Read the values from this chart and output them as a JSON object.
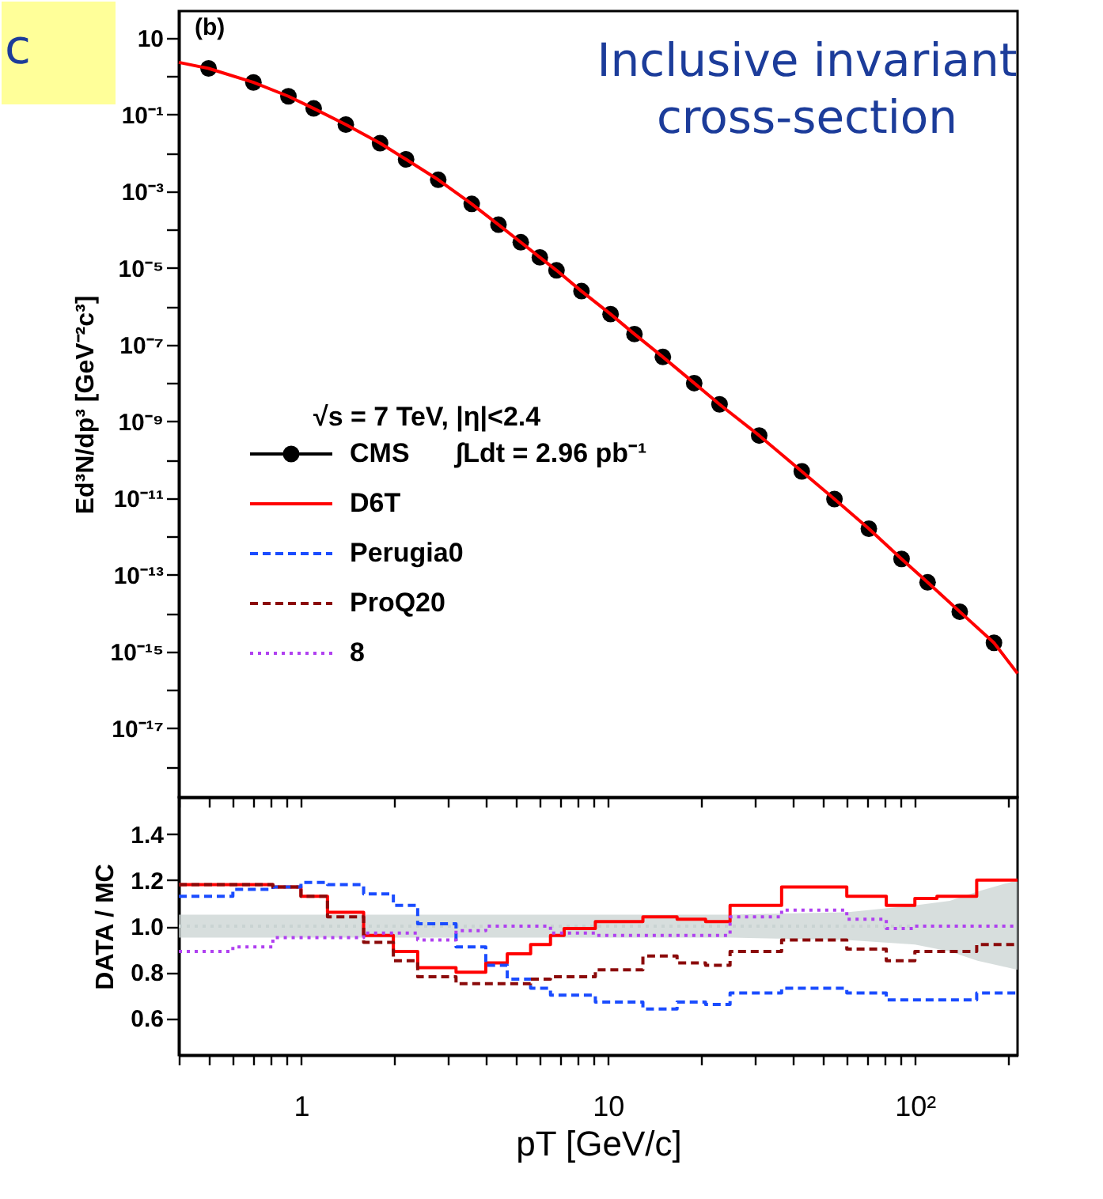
{
  "chart_data": [
    {
      "type": "scatter",
      "ylabel": "Ed³N/dp³ [GeV⁻²c³]",
      "log": "xy",
      "tick_labels": "y",
      "legend": "left",
      "legend_title": "√s = 7 TeV,   |η|<2.4",
      "annotations": [
        "(b)",
        "∫Ldt = 2.96 pb⁻¹",
        "Inclusive invariant cross-section",
        "c"
      ],
      "xlim": [
        0.4,
        216
      ],
      "ylim": [
        1.6e-19,
        50
      ],
      "xticks": [
        {
          "value": 0.4,
          "label": null
        },
        {
          "value": 0.5,
          "label": null
        },
        {
          "value": 0.6,
          "label": null
        },
        {
          "value": 0.7,
          "label": null
        },
        {
          "value": 0.8,
          "label": null
        },
        {
          "value": 0.9,
          "label": null
        },
        {
          "value": 1,
          "label": null
        },
        {
          "value": 2,
          "label": null
        },
        {
          "value": 3,
          "label": null
        },
        {
          "value": 4,
          "label": null
        },
        {
          "value": 5,
          "label": null
        },
        {
          "value": 6,
          "label": null
        },
        {
          "value": 7,
          "label": null
        },
        {
          "value": 8,
          "label": null
        },
        {
          "value": 9,
          "label": null
        },
        {
          "value": 10,
          "label": null
        },
        {
          "value": 20,
          "label": null
        },
        {
          "value": 30,
          "label": null
        },
        {
          "value": 40,
          "label": null
        },
        {
          "value": 50,
          "label": null
        },
        {
          "value": 60,
          "label": null
        },
        {
          "value": 70,
          "label": null
        },
        {
          "value": 80,
          "label": null
        },
        {
          "value": 90,
          "label": null
        },
        {
          "value": 100,
          "label": null
        },
        {
          "value": 200,
          "label": null
        }
      ],
      "yticks": [
        10,
        {
          "value": 1,
          "label": null
        },
        {
          "value": 0.1,
          "label": "10⁻¹"
        },
        {
          "value": 0.01,
          "label": null
        },
        {
          "value": 0.001,
          "label": "10⁻³"
        },
        {
          "value": 0.0001,
          "label": null
        },
        {
          "value": 1e-05,
          "label": "10⁻⁵"
        },
        {
          "value": 1e-06,
          "label": null
        },
        {
          "value": 1e-07,
          "label": "10⁻⁷"
        },
        {
          "value": 1e-08,
          "label": null
        },
        {
          "value": 1e-09,
          "label": "10⁻⁹"
        },
        {
          "value": 1e-10,
          "label": null
        },
        {
          "value": 1e-11,
          "label": "10⁻¹¹"
        },
        {
          "value": 1e-12,
          "label": null
        },
        {
          "value": 1e-13,
          "label": "10⁻¹³"
        },
        {
          "value": 1e-14,
          "label": null
        },
        {
          "value": 1e-15,
          "label": "10⁻¹⁵"
        },
        {
          "value": 1e-16,
          "label": null
        },
        {
          "value": 1e-17,
          "label": "10⁻¹⁷"
        },
        {
          "value": 1e-18,
          "label": null
        }
      ],
      "series": [
        {
          "name": "CMS",
          "marker": "circle",
          "color": "#000000",
          "x": [
            0.5,
            0.7,
            0.91,
            1.1,
            1.4,
            1.81,
            2.2,
            2.8,
            3.6,
            4.4,
            5.2,
            6.0,
            6.8,
            8.2,
            10.2,
            12.2,
            15.1,
            19.1,
            23.1,
            31.1,
            42.8,
            54.7,
            70.8,
            90.5,
            110,
            140,
            181
          ],
          "values": [
            1.6,
            0.69,
            0.3,
            0.145,
            0.055,
            0.018,
            0.0068,
            0.002,
            0.00047,
            0.000135,
            4.7e-05,
            1.9e-05,
            8.7e-06,
            2.5e-06,
            6.3e-07,
            1.9e-07,
            4.8e-08,
            1e-08,
            2.8e-09,
            4.3e-10,
            5e-11,
            9.5e-12,
            1.6e-12,
            2.6e-13,
            6.4e-14,
            1.1e-14,
            1.7e-15
          ]
        },
        {
          "name": "D6T",
          "type": "line",
          "color": "#ff0000",
          "line_style": "solid",
          "x": [
            0.4,
            0.5,
            0.7,
            0.91,
            1.1,
            1.4,
            1.81,
            2.2,
            2.8,
            3.6,
            4.4,
            5.2,
            6.0,
            6.8,
            8.2,
            10.2,
            12.2,
            15.1,
            19.1,
            23.1,
            31.1,
            42.8,
            54.7,
            70.8,
            90.5,
            110,
            140,
            181,
            216
          ],
          "values": [
            2.3,
            1.6,
            0.69,
            0.3,
            0.145,
            0.055,
            0.018,
            0.0068,
            0.002,
            0.00047,
            0.000135,
            4.7e-05,
            1.9e-05,
            8.7e-06,
            2.5e-06,
            6.3e-07,
            1.9e-07,
            4.8e-08,
            1e-08,
            2.8e-09,
            4.3e-10,
            5e-11,
            9.5e-12,
            1.6e-12,
            2.6e-13,
            6.4e-14,
            1.1e-14,
            1.7e-15,
            2.7e-16
          ]
        }
      ]
    },
    {
      "type": "step",
      "xlabel": "pT [GeV/c]",
      "ylabel": "DATA / MC",
      "log": "x",
      "legend": "left",
      "xlim": [
        0.4,
        216
      ],
      "ylim": [
        0.44,
        1.56
      ],
      "xticks": [
        {
          "value": 0.4,
          "label": null
        },
        {
          "value": 0.5,
          "label": null
        },
        {
          "value": 0.6,
          "label": null
        },
        {
          "value": 0.7,
          "label": null
        },
        {
          "value": 0.8,
          "label": null
        },
        {
          "value": 0.9,
          "label": null
        },
        1,
        {
          "value": 2,
          "label": null
        },
        {
          "value": 3,
          "label": null
        },
        {
          "value": 4,
          "label": null
        },
        {
          "value": 5,
          "label": null
        },
        {
          "value": 6,
          "label": null
        },
        {
          "value": 7,
          "label": null
        },
        {
          "value": 8,
          "label": null
        },
        {
          "value": 9,
          "label": null
        },
        10,
        {
          "value": 20,
          "label": null
        },
        {
          "value": 30,
          "label": null
        },
        {
          "value": 40,
          "label": null
        },
        {
          "value": 50,
          "label": null
        },
        {
          "value": 60,
          "label": null
        },
        {
          "value": 70,
          "label": null
        },
        {
          "value": 80,
          "label": null
        },
        {
          "value": 90,
          "label": null
        },
        {
          "value": 100,
          "label": "10²"
        },
        {
          "value": 200,
          "label": null
        }
      ],
      "yticks": [
        0.6,
        0.8,
        {
          "value": 1,
          "label": "1.0"
        },
        1.2,
        1.4
      ],
      "series": [
        {
          "type": "line",
          "color": "#c9d3d2",
          "line_style": "dotted",
          "x": [
            0.4,
            25,
            60,
            100,
            130,
            160,
            216
          ],
          "values": [
            1,
            1,
            1,
            1,
            1,
            1,
            1
          ],
          "lower": [
            0.95,
            0.95,
            0.94,
            0.92,
            0.89,
            0.85,
            0.81
          ],
          "upper": [
            1.05,
            1.05,
            1.06,
            1.09,
            1.11,
            1.15,
            1.2
          ]
        },
        {
          "name": "D6T",
          "color": "#ff0000",
          "line_style": "solid",
          "x": [
            0.4,
            0.6,
            0.81,
            1.0,
            1.22,
            1.6,
            2.0,
            2.4,
            3.2,
            4.0,
            4.7,
            5.6,
            6.5,
            7.2,
            9.1,
            11,
            13,
            16.8,
            20.8,
            25,
            36.8,
            60,
            80.7,
            100,
            118,
            159,
            216
          ],
          "values": [
            1.18,
            1.18,
            1.17,
            1.13,
            1.06,
            0.96,
            0.89,
            0.82,
            0.8,
            0.84,
            0.88,
            0.92,
            0.96,
            0.99,
            1.02,
            1.02,
            1.04,
            1.03,
            1.02,
            1.09,
            1.17,
            1.13,
            1.09,
            1.12,
            1.13,
            1.2,
            1.2
          ]
        },
        {
          "name": "Perugia0",
          "color": "#1a4cff",
          "line_style": "dashed",
          "x": [
            0.4,
            0.6,
            0.81,
            1.0,
            1.22,
            1.6,
            2.0,
            2.4,
            3.2,
            4.0,
            4.7,
            5.6,
            6.5,
            7.2,
            9.1,
            11,
            13,
            16.8,
            20.8,
            25,
            36.8,
            60,
            80.7,
            100,
            118,
            159,
            216
          ],
          "values": [
            1.13,
            1.16,
            1.17,
            1.19,
            1.18,
            1.14,
            1.09,
            1.01,
            0.91,
            0.83,
            0.77,
            0.73,
            0.7,
            0.7,
            0.67,
            0.67,
            0.64,
            0.67,
            0.66,
            0.71,
            0.73,
            0.71,
            0.68,
            0.68,
            0.68,
            0.71,
            0.71
          ]
        },
        {
          "name": "ProQ20",
          "color": "#8b0a0a",
          "line_style": "dashed",
          "x": [
            0.4,
            0.6,
            0.81,
            1.0,
            1.22,
            1.6,
            2.0,
            2.4,
            3.2,
            4.0,
            4.7,
            5.6,
            6.5,
            7.2,
            9.1,
            11,
            13,
            16.8,
            20.8,
            25,
            36.8,
            60,
            80.7,
            100,
            118,
            159,
            216
          ],
          "values": [
            1.18,
            1.18,
            1.17,
            1.13,
            1.04,
            0.93,
            0.85,
            0.78,
            0.75,
            0.75,
            0.75,
            0.77,
            0.78,
            0.78,
            0.81,
            0.81,
            0.87,
            0.84,
            0.83,
            0.89,
            0.94,
            0.9,
            0.85,
            0.89,
            0.89,
            0.92,
            0.92
          ]
        },
        {
          "name": "8",
          "color": "#b040f0",
          "line_style": "dotted",
          "x": [
            0.4,
            0.6,
            0.81,
            1.0,
            1.22,
            1.6,
            2.0,
            2.4,
            3.2,
            4.0,
            4.7,
            5.6,
            6.5,
            7.2,
            9.1,
            11,
            13,
            16.8,
            20.8,
            25,
            36.8,
            60,
            80.7,
            100,
            118,
            159,
            216
          ],
          "values": [
            0.89,
            0.91,
            0.95,
            0.95,
            0.95,
            0.97,
            0.97,
            0.94,
            0.98,
            1.0,
            1.0,
            1.0,
            0.97,
            0.97,
            0.96,
            0.96,
            0.96,
            0.96,
            0.96,
            1.04,
            1.07,
            1.03,
            0.99,
            1.0,
            1.0,
            1.0,
            1.0
          ]
        }
      ]
    }
  ]
}
